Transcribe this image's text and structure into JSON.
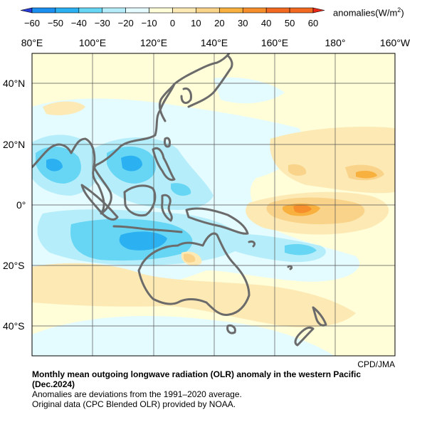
{
  "colorbar": {
    "ticks": [
      "−60",
      "−50",
      "−40",
      "−30",
      "−20",
      "−10",
      "0",
      "10",
      "20",
      "30",
      "40",
      "50",
      "60"
    ],
    "units_prefix": "anomalies(W/m",
    "units_sup": "2",
    "units_suffix": ")",
    "colors": [
      "#2a3cd6",
      "#1a8ff0",
      "#2bb1f2",
      "#67d6f4",
      "#b5eefa",
      "#e4fbff",
      "#fffed8",
      "#fde9b4",
      "#fad38a",
      "#f8b13e",
      "#f68e2b",
      "#f26921",
      "#e8291a"
    ]
  },
  "map": {
    "lon_labels": [
      "80°E",
      "100°E",
      "120°E",
      "140°E",
      "160°E",
      "180°",
      "160°W"
    ],
    "lat_labels": [
      "40°N",
      "20°N",
      "0°",
      "20°S",
      "40°S"
    ],
    "region": "western Pacific",
    "grid": true
  },
  "credit": "CPD/JMA",
  "caption": {
    "title_line1": "Monthly mean outgoing longwave radiation (OLR) anomaly in the western Pacific",
    "title_line2": "(Dec.2024)",
    "line3": "Anomalies are deviations from the 1991–2020 average.",
    "line4": "Original data (CPC Blended OLR) provided by NOAA."
  }
}
